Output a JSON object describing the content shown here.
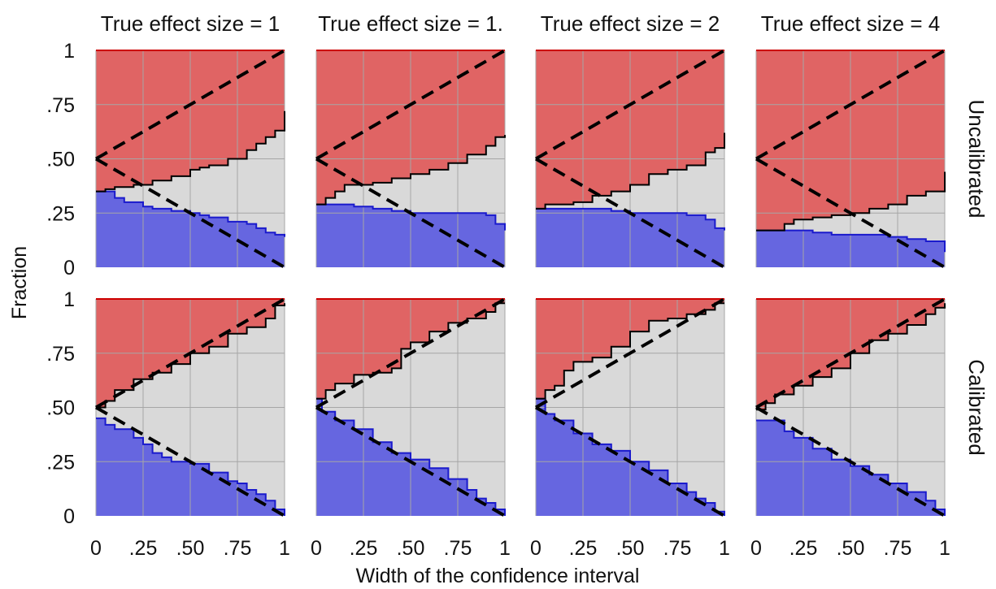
{
  "figure": {
    "xlabel": "Width of the confidence interval",
    "ylabel": "Fraction",
    "x_ticks": [
      "0",
      ".25",
      ".50",
      ".75",
      "1"
    ],
    "y_ticks": [
      "0",
      ".25",
      ".50",
      ".75",
      "1"
    ],
    "column_titles": [
      "True effect size = 1",
      "True effect size = 1.",
      "True effect size = 2",
      "True effect size = 4"
    ],
    "row_labels": [
      "Uncalibrated",
      "Calibrated"
    ],
    "colors": {
      "upper_region": "#e06464",
      "middle_region": "#d9d9d9",
      "lower_region": "#6666e0",
      "upper_line": "#cc0000",
      "lower_line": "#1a1acc",
      "boundary_line": "#000000",
      "reference_line": "#000000",
      "grid": "#a6a6a6"
    }
  },
  "chart_data": {
    "type": "area",
    "grid": true,
    "xlim": [
      0,
      1
    ],
    "ylim": [
      0,
      1
    ],
    "panels": [
      {
        "row": "Uncalibrated",
        "column": "True effect size = 1",
        "lower_boundary": [
          [
            0,
            0.35
          ],
          [
            0.06,
            0.35
          ],
          [
            0.1,
            0.32
          ],
          [
            0.15,
            0.3
          ],
          [
            0.25,
            0.28
          ],
          [
            0.3,
            0.27
          ],
          [
            0.4,
            0.26
          ],
          [
            0.5,
            0.25
          ],
          [
            0.55,
            0.24
          ],
          [
            0.6,
            0.23
          ],
          [
            0.7,
            0.21
          ],
          [
            0.8,
            0.2
          ],
          [
            0.85,
            0.18
          ],
          [
            0.9,
            0.16
          ],
          [
            0.95,
            0.15
          ],
          [
            1,
            0.14
          ]
        ],
        "upper_boundary": [
          [
            0,
            0.35
          ],
          [
            0.05,
            0.36
          ],
          [
            0.1,
            0.37
          ],
          [
            0.2,
            0.38
          ],
          [
            0.3,
            0.4
          ],
          [
            0.4,
            0.42
          ],
          [
            0.5,
            0.45
          ],
          [
            0.55,
            0.46
          ],
          [
            0.6,
            0.47
          ],
          [
            0.7,
            0.5
          ],
          [
            0.8,
            0.54
          ],
          [
            0.85,
            0.57
          ],
          [
            0.9,
            0.6
          ],
          [
            0.95,
            0.63
          ],
          [
            1,
            0.72
          ]
        ]
      },
      {
        "row": "Uncalibrated",
        "column": "True effect size = 1.",
        "lower_boundary": [
          [
            0,
            0.29
          ],
          [
            0.2,
            0.28
          ],
          [
            0.3,
            0.27
          ],
          [
            0.4,
            0.26
          ],
          [
            0.5,
            0.25
          ],
          [
            0.6,
            0.25
          ],
          [
            0.7,
            0.25
          ],
          [
            0.8,
            0.25
          ],
          [
            0.9,
            0.24
          ],
          [
            0.95,
            0.2
          ],
          [
            1,
            0.17
          ]
        ],
        "upper_boundary": [
          [
            0,
            0.29
          ],
          [
            0.05,
            0.32
          ],
          [
            0.1,
            0.35
          ],
          [
            0.15,
            0.38
          ],
          [
            0.3,
            0.39
          ],
          [
            0.4,
            0.41
          ],
          [
            0.5,
            0.43
          ],
          [
            0.6,
            0.45
          ],
          [
            0.7,
            0.48
          ],
          [
            0.8,
            0.52
          ],
          [
            0.9,
            0.56
          ],
          [
            0.95,
            0.6
          ],
          [
            1,
            0.61
          ]
        ]
      },
      {
        "row": "Uncalibrated",
        "column": "True effect size = 2",
        "lower_boundary": [
          [
            0,
            0.27
          ],
          [
            0.2,
            0.27
          ],
          [
            0.4,
            0.26
          ],
          [
            0.5,
            0.25
          ],
          [
            0.6,
            0.25
          ],
          [
            0.7,
            0.25
          ],
          [
            0.8,
            0.24
          ],
          [
            0.9,
            0.22
          ],
          [
            0.95,
            0.18
          ],
          [
            1,
            0.17
          ]
        ],
        "upper_boundary": [
          [
            0,
            0.27
          ],
          [
            0.05,
            0.29
          ],
          [
            0.2,
            0.3
          ],
          [
            0.3,
            0.33
          ],
          [
            0.4,
            0.35
          ],
          [
            0.5,
            0.38
          ],
          [
            0.6,
            0.43
          ],
          [
            0.7,
            0.45
          ],
          [
            0.8,
            0.47
          ],
          [
            0.9,
            0.53
          ],
          [
            0.95,
            0.55
          ],
          [
            1,
            0.62
          ]
        ]
      },
      {
        "row": "Uncalibrated",
        "column": "True effect size = 4",
        "lower_boundary": [
          [
            0,
            0.17
          ],
          [
            0.1,
            0.17
          ],
          [
            0.2,
            0.17
          ],
          [
            0.3,
            0.16
          ],
          [
            0.4,
            0.15
          ],
          [
            0.5,
            0.15
          ],
          [
            0.6,
            0.15
          ],
          [
            0.7,
            0.14
          ],
          [
            0.8,
            0.13
          ],
          [
            0.9,
            0.12
          ],
          [
            1,
            0.07
          ]
        ],
        "upper_boundary": [
          [
            0,
            0.17
          ],
          [
            0.1,
            0.17
          ],
          [
            0.15,
            0.2
          ],
          [
            0.2,
            0.22
          ],
          [
            0.3,
            0.23
          ],
          [
            0.4,
            0.24
          ],
          [
            0.5,
            0.25
          ],
          [
            0.6,
            0.27
          ],
          [
            0.7,
            0.29
          ],
          [
            0.8,
            0.33
          ],
          [
            0.9,
            0.35
          ],
          [
            0.97,
            0.35
          ],
          [
            1,
            0.44
          ]
        ]
      },
      {
        "row": "Calibrated",
        "column": "True effect size = 1",
        "lower_boundary": [
          [
            0,
            0.45
          ],
          [
            0.05,
            0.42
          ],
          [
            0.1,
            0.4
          ],
          [
            0.2,
            0.36
          ],
          [
            0.25,
            0.33
          ],
          [
            0.3,
            0.29
          ],
          [
            0.35,
            0.27
          ],
          [
            0.4,
            0.25
          ],
          [
            0.5,
            0.24
          ],
          [
            0.6,
            0.2
          ],
          [
            0.7,
            0.16
          ],
          [
            0.75,
            0.15
          ],
          [
            0.8,
            0.12
          ],
          [
            0.85,
            0.1
          ],
          [
            0.9,
            0.07
          ],
          [
            0.95,
            0.03
          ],
          [
            1,
            0
          ]
        ],
        "upper_boundary": [
          [
            0,
            0.5
          ],
          [
            0.05,
            0.53
          ],
          [
            0.1,
            0.58
          ],
          [
            0.2,
            0.63
          ],
          [
            0.3,
            0.66
          ],
          [
            0.4,
            0.7
          ],
          [
            0.5,
            0.75
          ],
          [
            0.6,
            0.78
          ],
          [
            0.7,
            0.84
          ],
          [
            0.8,
            0.87
          ],
          [
            0.9,
            0.91
          ],
          [
            0.95,
            0.97
          ],
          [
            1,
            0.98
          ]
        ]
      },
      {
        "row": "Calibrated",
        "column": "True effect size = 1.",
        "lower_boundary": [
          [
            0,
            0.54
          ],
          [
            0.03,
            0.48
          ],
          [
            0.1,
            0.44
          ],
          [
            0.2,
            0.4
          ],
          [
            0.3,
            0.34
          ],
          [
            0.4,
            0.29
          ],
          [
            0.5,
            0.26
          ],
          [
            0.6,
            0.22
          ],
          [
            0.7,
            0.17
          ],
          [
            0.8,
            0.12
          ],
          [
            0.85,
            0.08
          ],
          [
            0.9,
            0.06
          ],
          [
            0.95,
            0.03
          ],
          [
            1,
            0
          ]
        ],
        "upper_boundary": [
          [
            0,
            0.54
          ],
          [
            0.05,
            0.58
          ],
          [
            0.1,
            0.61
          ],
          [
            0.2,
            0.65
          ],
          [
            0.3,
            0.66
          ],
          [
            0.4,
            0.68
          ],
          [
            0.45,
            0.77
          ],
          [
            0.5,
            0.8
          ],
          [
            0.6,
            0.85
          ],
          [
            0.7,
            0.89
          ],
          [
            0.8,
            0.91
          ],
          [
            0.9,
            0.94
          ],
          [
            0.95,
            0.98
          ],
          [
            1,
            0.98
          ]
        ]
      },
      {
        "row": "Calibrated",
        "column": "True effect size = 2",
        "lower_boundary": [
          [
            0,
            0.54
          ],
          [
            0.05,
            0.47
          ],
          [
            0.1,
            0.44
          ],
          [
            0.2,
            0.38
          ],
          [
            0.3,
            0.33
          ],
          [
            0.4,
            0.3
          ],
          [
            0.5,
            0.25
          ],
          [
            0.6,
            0.21
          ],
          [
            0.7,
            0.15
          ],
          [
            0.8,
            0.11
          ],
          [
            0.85,
            0.08
          ],
          [
            0.9,
            0.06
          ],
          [
            0.95,
            0.02
          ],
          [
            1,
            0
          ]
        ],
        "upper_boundary": [
          [
            0,
            0.54
          ],
          [
            0.05,
            0.58
          ],
          [
            0.1,
            0.6
          ],
          [
            0.15,
            0.67
          ],
          [
            0.2,
            0.71
          ],
          [
            0.3,
            0.73
          ],
          [
            0.4,
            0.78
          ],
          [
            0.5,
            0.85
          ],
          [
            0.6,
            0.9
          ],
          [
            0.7,
            0.91
          ],
          [
            0.8,
            0.93
          ],
          [
            0.9,
            0.95
          ],
          [
            0.95,
            0.98
          ],
          [
            1,
            0.98
          ]
        ]
      },
      {
        "row": "Calibrated",
        "column": "True effect size = 4",
        "lower_boundary": [
          [
            0,
            0.44
          ],
          [
            0.08,
            0.44
          ],
          [
            0.15,
            0.39
          ],
          [
            0.2,
            0.36
          ],
          [
            0.3,
            0.31
          ],
          [
            0.4,
            0.26
          ],
          [
            0.5,
            0.23
          ],
          [
            0.6,
            0.19
          ],
          [
            0.7,
            0.15
          ],
          [
            0.8,
            0.11
          ],
          [
            0.9,
            0.07
          ],
          [
            0.95,
            0.03
          ],
          [
            1,
            0
          ]
        ],
        "upper_boundary": [
          [
            0,
            0.49
          ],
          [
            0.05,
            0.52
          ],
          [
            0.1,
            0.56
          ],
          [
            0.2,
            0.6
          ],
          [
            0.3,
            0.64
          ],
          [
            0.4,
            0.68
          ],
          [
            0.5,
            0.75
          ],
          [
            0.6,
            0.81
          ],
          [
            0.7,
            0.84
          ],
          [
            0.8,
            0.88
          ],
          [
            0.9,
            0.93
          ],
          [
            0.95,
            0.96
          ],
          [
            1,
            0.98
          ]
        ]
      }
    ],
    "reference_lines": [
      {
        "from": [
          0,
          0.5
        ],
        "to": [
          1,
          1
        ]
      },
      {
        "from": [
          0,
          0.5
        ],
        "to": [
          1,
          0
        ]
      }
    ]
  }
}
